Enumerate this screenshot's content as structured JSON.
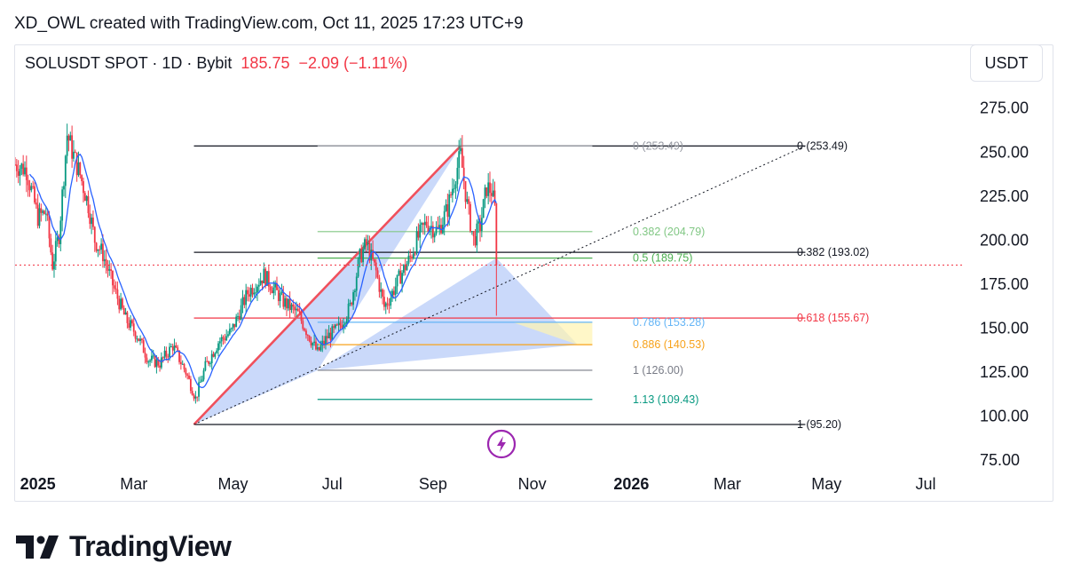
{
  "header": {
    "attribution": "XD_OWL created with TradingView.com, Oct 11, 2025 17:23 UTC+9"
  },
  "symbol": {
    "name": "SOLUSDT SPOT · 1D · Bybit",
    "last": "185.75",
    "change": "−2.09 (−1.11%)"
  },
  "currency_button": "USDT",
  "brand": {
    "name": "TradingView"
  },
  "colors": {
    "up": "#089981",
    "down": "#f23645",
    "ma": "#2962ff",
    "harmonic": "#9fb9f5",
    "bg": "#ffffff"
  },
  "chart_data": {
    "type": "candlestick",
    "x_range": [
      "2024-12-18",
      "2026-07-25"
    ],
    "ylim": [
      75,
      290
    ],
    "y_ticks": [
      {
        "value": 75,
        "label": "75.00"
      },
      {
        "value": 100,
        "label": "100.00"
      },
      {
        "value": 125,
        "label": "125.00"
      },
      {
        "value": 150,
        "label": "150.00"
      },
      {
        "value": 175,
        "label": "175.00"
      },
      {
        "value": 200,
        "label": "200.00"
      },
      {
        "value": 225,
        "label": "225.00"
      },
      {
        "value": 250,
        "label": "250.00"
      },
      {
        "value": 275,
        "label": "275.00"
      }
    ],
    "x_ticks": [
      {
        "date": "2025-01-01",
        "label": "2025",
        "bold": true
      },
      {
        "date": "2025-03-01",
        "label": "Mar",
        "bold": false
      },
      {
        "date": "2025-05-01",
        "label": "May",
        "bold": false
      },
      {
        "date": "2025-07-01",
        "label": "Jul",
        "bold": false
      },
      {
        "date": "2025-09-01",
        "label": "Sep",
        "bold": false
      },
      {
        "date": "2025-11-01",
        "label": "Nov",
        "bold": false
      },
      {
        "date": "2026-01-01",
        "label": "2026",
        "bold": true
      },
      {
        "date": "2026-03-01",
        "label": "Mar",
        "bold": false
      },
      {
        "date": "2026-05-01",
        "label": "May",
        "bold": false
      },
      {
        "date": "2026-07-01",
        "label": "Jul",
        "bold": false
      }
    ],
    "price_path": [
      [
        "2024-12-18",
        243
      ],
      [
        "2024-12-25",
        240
      ],
      [
        "2025-01-01",
        213
      ],
      [
        "2025-01-06",
        216
      ],
      [
        "2025-01-10",
        186
      ],
      [
        "2025-01-14",
        203
      ],
      [
        "2025-01-19",
        260
      ],
      [
        "2025-01-23",
        248
      ],
      [
        "2025-01-27",
        237
      ],
      [
        "2025-02-01",
        220
      ],
      [
        "2025-02-05",
        200
      ],
      [
        "2025-02-10",
        192
      ],
      [
        "2025-02-17",
        172
      ],
      [
        "2025-02-24",
        155
      ],
      [
        "2025-03-03",
        146
      ],
      [
        "2025-03-10",
        132
      ],
      [
        "2025-03-17",
        130
      ],
      [
        "2025-03-25",
        140
      ],
      [
        "2025-04-02",
        125
      ],
      [
        "2025-04-08",
        110
      ],
      [
        "2025-04-14",
        128
      ],
      [
        "2025-04-22",
        142
      ],
      [
        "2025-04-30",
        148
      ],
      [
        "2025-05-10",
        170
      ],
      [
        "2025-05-20",
        180
      ],
      [
        "2025-06-01",
        165
      ],
      [
        "2025-06-10",
        158
      ],
      [
        "2025-06-22",
        136
      ],
      [
        "2025-06-28",
        145
      ],
      [
        "2025-07-05",
        150
      ],
      [
        "2025-07-12",
        162
      ],
      [
        "2025-07-18",
        190
      ],
      [
        "2025-07-22",
        198
      ],
      [
        "2025-07-28",
        182
      ],
      [
        "2025-08-02",
        162
      ],
      [
        "2025-08-06",
        168
      ],
      [
        "2025-08-12",
        180
      ],
      [
        "2025-08-18",
        190
      ],
      [
        "2025-08-22",
        200
      ],
      [
        "2025-08-28",
        210
      ],
      [
        "2025-09-04",
        205
      ],
      [
        "2025-09-10",
        218
      ],
      [
        "2025-09-15",
        238
      ],
      [
        "2025-09-18",
        248
      ],
      [
        "2025-09-22",
        220
      ],
      [
        "2025-09-26",
        200
      ],
      [
        "2025-09-30",
        208
      ],
      [
        "2025-10-04",
        230
      ],
      [
        "2025-10-07",
        228
      ],
      [
        "2025-10-09",
        218
      ],
      [
        "2025-10-10",
        185.75
      ]
    ],
    "last_price": 185.75,
    "harmonic_points": [
      {
        "date": "2025-04-07",
        "price": 95.2
      },
      {
        "date": "2025-09-18",
        "price": 253.49
      },
      {
        "date": "2025-06-22",
        "price": 126.0
      },
      {
        "date": "2025-10-10",
        "price": 189.75
      },
      {
        "date": "2025-11-29",
        "price": 140.53
      }
    ],
    "trend_line": {
      "from_date": "2025-04-07",
      "from_price": 95.2,
      "to_date": "2025-09-18",
      "to_price": 253.49
    },
    "dotted_line": {
      "from_date": "2025-04-07",
      "from_price": 95.2,
      "to_date": "2026-04-18",
      "to_price": 253.49
    },
    "fib_outer": [
      {
        "label": "0 (253.49)",
        "value": 253.49,
        "color": "#131722"
      },
      {
        "label": "0.382 (193.02)",
        "value": 193.02,
        "color": "#131722"
      },
      {
        "label": "0.618 (155.67)",
        "value": 155.67,
        "color": "#f23645"
      },
      {
        "label": "1 (95.20)",
        "value": 95.2,
        "color": "#131722"
      }
    ],
    "fib_inner": [
      {
        "label": "0 (253.49)",
        "value": 253.49,
        "color": "#9598a1"
      },
      {
        "label": "0.382 (204.79)",
        "value": 204.79,
        "color": "#81c784"
      },
      {
        "label": "0.5 (189.75)",
        "value": 189.75,
        "color": "#4caf50"
      },
      {
        "label": "0.786 (153.28)",
        "value": 153.28,
        "color": "#64b5f6"
      },
      {
        "label": "0.886 (140.53)",
        "value": 140.53,
        "color": "#f7a21b"
      },
      {
        "label": "1 (126.00)",
        "value": 126.0,
        "color": "#787b86"
      },
      {
        "label": "1.13 (109.43)",
        "value": 109.43,
        "color": "#089981"
      }
    ]
  }
}
